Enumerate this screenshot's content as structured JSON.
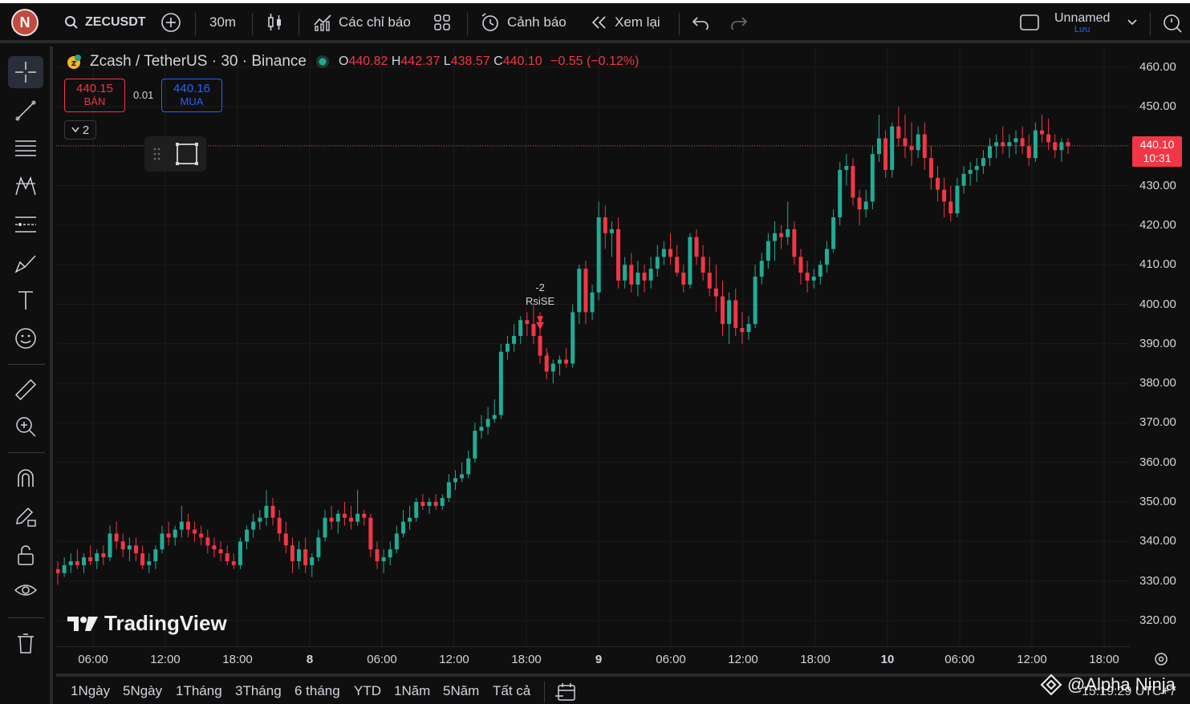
{
  "toolbar": {
    "avatar_letter": "N",
    "symbol": "ZECUSDT",
    "interval": "30m",
    "indicators_label": "Các chỉ báo",
    "alerts_label": "Cảnh báo",
    "replay_label": "Xem lại",
    "layout_name": "Unnamed",
    "save_label": "Lưu"
  },
  "legend": {
    "title": "Zcash / TetherUS · 30 · Binance",
    "o_label": "O",
    "o": "440.82",
    "h_label": "H",
    "h": "442.37",
    "l_label": "L",
    "l": "438.57",
    "c_label": "C",
    "c": "440.10",
    "change": "−0.55 (−0.12%)"
  },
  "trade": {
    "sell_price": "440.15",
    "sell_label": "BÁN",
    "spread": "0.01",
    "buy_price": "440.16",
    "buy_label": "MUA",
    "collapse_count": "2"
  },
  "price_scale": {
    "labels": [
      "460.00",
      "450.00",
      "440.00",
      "430.00",
      "420.00",
      "410.00",
      "400.00",
      "390.00",
      "380.00",
      "370.00",
      "360.00",
      "350.00",
      "340.00",
      "330.00",
      "320.00"
    ],
    "last_price": "440.10",
    "countdown": "10:31"
  },
  "time_scale": {
    "labels": [
      "06:00",
      "12:00",
      "18:00",
      "8",
      "06:00",
      "12:00",
      "18:00",
      "9",
      "06:00",
      "12:00",
      "18:00",
      "10",
      "06:00",
      "12:00",
      "18:00"
    ]
  },
  "signal": {
    "value": "-2",
    "label": "RsiSE"
  },
  "branding": {
    "logo_text": "TradingView",
    "watermark": "@Alpha Ninja",
    "clock": "15:19:29 UTC+7"
  },
  "ranges": [
    "1Ngày",
    "5Ngày",
    "1Tháng",
    "3Tháng",
    "6 tháng",
    "YTD",
    "1Năm",
    "5Năm",
    "Tất cả"
  ],
  "colors": {
    "up": "#22ab94",
    "down": "#f23645",
    "background": "#0f0f0f"
  },
  "chart_data": {
    "type": "candlestick",
    "symbol": "ZECUSDT",
    "interval": "30m",
    "ylim": [
      315,
      465
    ],
    "candles": [
      [
        333,
        335,
        329,
        332
      ],
      [
        332,
        336,
        331,
        334
      ],
      [
        334,
        337,
        332,
        335
      ],
      [
        335,
        338,
        333,
        334
      ],
      [
        334,
        337,
        332,
        336
      ],
      [
        336,
        339,
        334,
        335
      ],
      [
        335,
        338,
        333,
        337
      ],
      [
        337,
        339,
        334,
        336
      ],
      [
        336,
        344,
        335,
        342
      ],
      [
        342,
        345,
        338,
        340
      ],
      [
        340,
        342,
        336,
        338
      ],
      [
        338,
        341,
        335,
        339
      ],
      [
        339,
        341,
        335,
        337
      ],
      [
        337,
        339,
        333,
        334
      ],
      [
        334,
        337,
        332,
        335
      ],
      [
        335,
        339,
        333,
        338
      ],
      [
        338,
        344,
        337,
        342
      ],
      [
        342,
        345,
        339,
        341
      ],
      [
        341,
        344,
        339,
        343
      ],
      [
        343,
        349,
        341,
        345
      ],
      [
        345,
        347,
        341,
        343
      ],
      [
        343,
        345,
        340,
        342
      ],
      [
        342,
        344,
        339,
        341
      ],
      [
        341,
        343,
        337,
        339
      ],
      [
        339,
        341,
        336,
        338
      ],
      [
        338,
        340,
        335,
        337
      ],
      [
        337,
        339,
        334,
        335
      ],
      [
        335,
        337,
        333,
        334
      ],
      [
        334,
        341,
        333,
        340
      ],
      [
        340,
        344,
        338,
        343
      ],
      [
        343,
        347,
        341,
        345
      ],
      [
        345,
        348,
        343,
        346
      ],
      [
        346,
        353,
        344,
        349
      ],
      [
        349,
        351,
        344,
        346
      ],
      [
        346,
        348,
        340,
        342
      ],
      [
        342,
        345,
        337,
        339
      ],
      [
        339,
        341,
        332,
        335
      ],
      [
        335,
        340,
        333,
        338
      ],
      [
        338,
        341,
        332,
        334
      ],
      [
        334,
        337,
        331,
        336
      ],
      [
        336,
        343,
        335,
        341
      ],
      [
        341,
        348,
        340,
        346
      ],
      [
        346,
        349,
        343,
        345
      ],
      [
        345,
        348,
        342,
        347
      ],
      [
        347,
        350,
        344,
        346
      ],
      [
        346,
        349,
        343,
        345
      ],
      [
        345,
        353,
        344,
        347
      ],
      [
        347,
        348,
        344,
        346
      ],
      [
        346,
        347,
        336,
        338
      ],
      [
        338,
        340,
        333,
        335
      ],
      [
        335,
        338,
        332,
        336
      ],
      [
        336,
        340,
        334,
        338
      ],
      [
        338,
        344,
        337,
        342
      ],
      [
        342,
        348,
        341,
        345
      ],
      [
        345,
        349,
        343,
        346
      ],
      [
        346,
        351,
        345,
        350
      ],
      [
        350,
        352,
        348,
        349
      ],
      [
        349,
        351,
        347,
        350
      ],
      [
        350,
        352,
        348,
        349
      ],
      [
        349,
        352,
        348,
        351
      ],
      [
        351,
        357,
        350,
        355
      ],
      [
        355,
        358,
        353,
        356
      ],
      [
        356,
        360,
        355,
        357
      ],
      [
        357,
        363,
        356,
        361
      ],
      [
        361,
        370,
        360,
        368
      ],
      [
        368,
        372,
        366,
        369
      ],
      [
        369,
        374,
        367,
        371
      ],
      [
        371,
        376,
        370,
        372
      ],
      [
        372,
        390,
        371,
        388
      ],
      [
        388,
        392,
        386,
        390
      ],
      [
        390,
        395,
        388,
        392
      ],
      [
        392,
        397,
        390,
        396
      ],
      [
        396,
        398,
        392,
        395
      ],
      [
        395,
        400,
        390,
        392
      ],
      [
        392,
        398,
        385,
        387
      ],
      [
        387,
        389,
        381,
        383
      ],
      [
        383,
        386,
        380,
        385
      ],
      [
        385,
        387,
        382,
        386
      ],
      [
        386,
        389,
        384,
        385
      ],
      [
        385,
        400,
        384,
        398
      ],
      [
        398,
        410,
        395,
        409
      ],
      [
        409,
        411,
        395,
        398
      ],
      [
        398,
        405,
        396,
        403
      ],
      [
        403,
        426,
        401,
        422
      ],
      [
        422,
        425,
        414,
        418
      ],
      [
        418,
        421,
        412,
        419
      ],
      [
        419,
        422,
        404,
        406
      ],
      [
        406,
        412,
        404,
        410
      ],
      [
        410,
        413,
        403,
        405
      ],
      [
        405,
        411,
        402,
        408
      ],
      [
        408,
        410,
        403,
        406
      ],
      [
        406,
        412,
        404,
        409
      ],
      [
        409,
        415,
        407,
        412
      ],
      [
        412,
        416,
        410,
        414
      ],
      [
        414,
        418,
        410,
        412
      ],
      [
        412,
        415,
        407,
        408
      ],
      [
        408,
        410,
        403,
        405
      ],
      [
        405,
        418,
        404,
        417
      ],
      [
        417,
        419,
        410,
        412
      ],
      [
        412,
        415,
        406,
        408
      ],
      [
        408,
        412,
        402,
        404
      ],
      [
        404,
        410,
        398,
        402
      ],
      [
        402,
        406,
        392,
        395
      ],
      [
        395,
        403,
        390,
        401
      ],
      [
        401,
        404,
        392,
        394
      ],
      [
        394,
        398,
        390,
        393
      ],
      [
        393,
        397,
        391,
        395
      ],
      [
        395,
        410,
        394,
        407
      ],
      [
        407,
        413,
        405,
        411
      ],
      [
        411,
        418,
        409,
        416
      ],
      [
        416,
        421,
        411,
        418
      ],
      [
        418,
        420,
        414,
        417
      ],
      [
        417,
        426,
        415,
        419
      ],
      [
        419,
        421,
        410,
        412
      ],
      [
        412,
        414,
        405,
        408
      ],
      [
        408,
        411,
        403,
        406
      ],
      [
        406,
        409,
        404,
        407
      ],
      [
        407,
        411,
        405,
        410
      ],
      [
        410,
        416,
        408,
        414
      ],
      [
        414,
        424,
        413,
        422
      ],
      [
        422,
        436,
        420,
        434
      ],
      [
        434,
        438,
        430,
        435
      ],
      [
        435,
        437,
        425,
        427
      ],
      [
        427,
        429,
        420,
        424
      ],
      [
        424,
        429,
        422,
        426
      ],
      [
        426,
        440,
        424,
        438
      ],
      [
        438,
        448,
        436,
        442
      ],
      [
        442,
        444,
        432,
        434
      ],
      [
        434,
        446,
        432,
        445
      ],
      [
        445,
        450,
        440,
        442
      ],
      [
        442,
        448,
        437,
        440
      ],
      [
        440,
        446,
        435,
        439
      ],
      [
        439,
        445,
        437,
        443
      ],
      [
        443,
        446,
        434,
        437
      ],
      [
        437,
        440,
        429,
        432
      ],
      [
        432,
        435,
        426,
        429
      ],
      [
        429,
        432,
        422,
        426
      ],
      [
        426,
        430,
        421,
        423
      ],
      [
        423,
        432,
        422,
        430
      ],
      [
        430,
        435,
        428,
        433
      ],
      [
        433,
        436,
        430,
        434
      ],
      [
        434,
        437,
        431,
        435
      ],
      [
        435,
        439,
        433,
        437
      ],
      [
        437,
        442,
        435,
        440
      ],
      [
        440,
        443,
        437,
        441
      ],
      [
        441,
        445,
        438,
        440
      ],
      [
        440,
        443,
        437,
        441
      ],
      [
        441,
        444,
        438,
        442
      ],
      [
        442,
        445,
        438,
        440
      ],
      [
        440,
        443,
        435,
        437
      ],
      [
        437,
        446,
        436,
        444
      ],
      [
        444,
        448,
        441,
        443
      ],
      [
        443,
        447,
        439,
        441
      ],
      [
        441,
        443,
        437,
        439
      ],
      [
        439,
        442,
        436,
        441
      ],
      [
        441,
        442,
        438,
        440
      ]
    ]
  }
}
